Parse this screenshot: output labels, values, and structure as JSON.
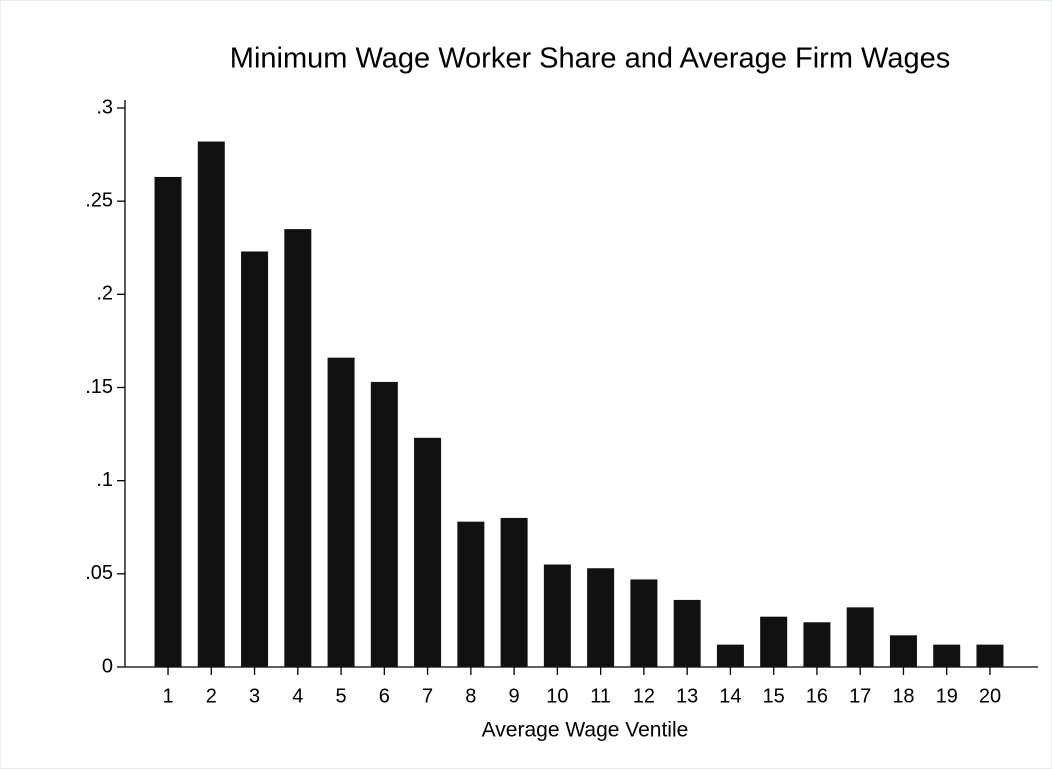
{
  "chart_data": {
    "type": "bar",
    "title": "Minimum Wage Worker Share and Average Firm Wages",
    "x_label": "Average Wage Ventile",
    "categories": [
      "1",
      "2",
      "3",
      "4",
      "5",
      "6",
      "7",
      "8",
      "9",
      "10",
      "11",
      "12",
      "13",
      "14",
      "15",
      "16",
      "17",
      "18",
      "19",
      "20"
    ],
    "values": [
      0.263,
      0.282,
      0.223,
      0.235,
      0.166,
      0.153,
      0.123,
      0.078,
      0.08,
      0.055,
      0.053,
      0.047,
      0.036,
      0.012,
      0.027,
      0.024,
      0.032,
      0.017,
      0.012,
      0.012
    ],
    "color": "#111111",
    "ylim": [
      0,
      0.3
    ],
    "yticks": [
      0,
      {
        "value": 0.05,
        "label": ".05"
      },
      {
        "value": 0.1,
        "label": ".1"
      },
      {
        "value": 0.15,
        "label": ".15"
      },
      {
        "value": 0.2,
        "label": ".2"
      },
      {
        "value": 0.25,
        "label": ".25"
      },
      {
        "value": 0.3,
        "label": ".3"
      }
    ],
    "grid": false
  }
}
